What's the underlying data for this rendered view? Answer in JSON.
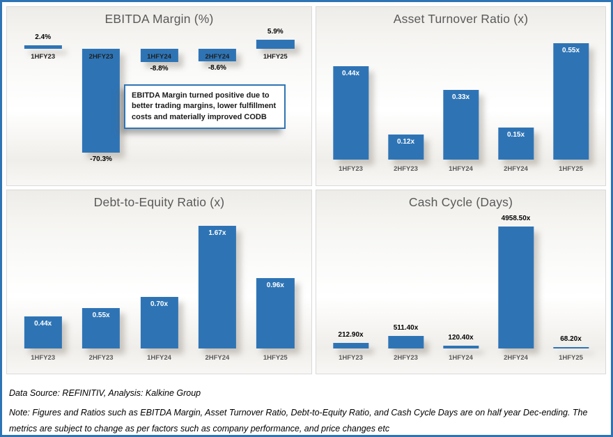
{
  "colors": {
    "bar": "#2E74B5",
    "frame_border": "#2E74B5",
    "panel_border": "#D9D9D9",
    "title": "#595959"
  },
  "chart_data": [
    {
      "type": "bar",
      "title": "EBITDA Margin (%)",
      "categories": [
        "1HFY23",
        "2HFY23",
        "1HFY24",
        "2HFY24",
        "1HFY25"
      ],
      "values": [
        2.4,
        -70.3,
        -8.8,
        -8.6,
        5.9
      ],
      "labels": [
        "2.4%",
        "-70.3%",
        "-8.8%",
        "-8.6%",
        "5.9%"
      ],
      "label_position": "outside",
      "xlabel": "",
      "ylabel": "",
      "ylim": [
        -73,
        10
      ],
      "grid": false,
      "legend": "none",
      "annotation": "EBITDA Margin turned positive due to better trading margins, lower fulfillment costs and materially improved CODB"
    },
    {
      "type": "bar",
      "title": "Asset Turnover Ratio (x)",
      "categories": [
        "1HFY23",
        "2HFY23",
        "1HFY24",
        "2HFY24",
        "1HFY25"
      ],
      "values": [
        0.44,
        0.12,
        0.33,
        0.15,
        0.55
      ],
      "labels": [
        "0.44x",
        "0.12x",
        "0.33x",
        "0.15x",
        "0.55x"
      ],
      "label_position": "inside",
      "xlabel": "",
      "ylabel": "",
      "ylim": [
        0,
        0.58
      ],
      "grid": false,
      "legend": "none"
    },
    {
      "type": "bar",
      "title": "Debt-to-Equity Ratio (x)",
      "categories": [
        "1HFY23",
        "2HFY23",
        "1HFY24",
        "2HFY24",
        "1HFY25"
      ],
      "values": [
        0.44,
        0.55,
        0.7,
        1.67,
        0.96
      ],
      "labels": [
        "0.44x",
        "0.55x",
        "0.70x",
        "1.67x",
        "0.96x"
      ],
      "label_position": "inside",
      "xlabel": "",
      "ylabel": "",
      "ylim": [
        0,
        1.75
      ],
      "grid": false,
      "legend": "none"
    },
    {
      "type": "bar",
      "title": "Cash Cycle (Days)",
      "categories": [
        "1HFY23",
        "2HFY23",
        "1HFY24",
        "2HFY24",
        "1HFY25"
      ],
      "values": [
        212.9,
        511.4,
        120.4,
        4958.5,
        68.2
      ],
      "labels": [
        "212.90x",
        "511.40x",
        "120.40x",
        "4958.50x",
        "68.20x"
      ],
      "label_position": "outside",
      "xlabel": "",
      "ylabel": "",
      "ylim": [
        0,
        5200
      ],
      "grid": false,
      "legend": "none"
    }
  ],
  "footer": {
    "source": "Data Source: REFINITIV, Analysis: Kalkine Group",
    "note": "Note: Figures and Ratios such as EBITDA Margin, Asset Turnover Ratio, Debt-to-Equity Ratio, and Cash Cycle Days are on half year Dec-ending. The metrics are subject to change as per factors such as company performance, and price changes etc"
  }
}
